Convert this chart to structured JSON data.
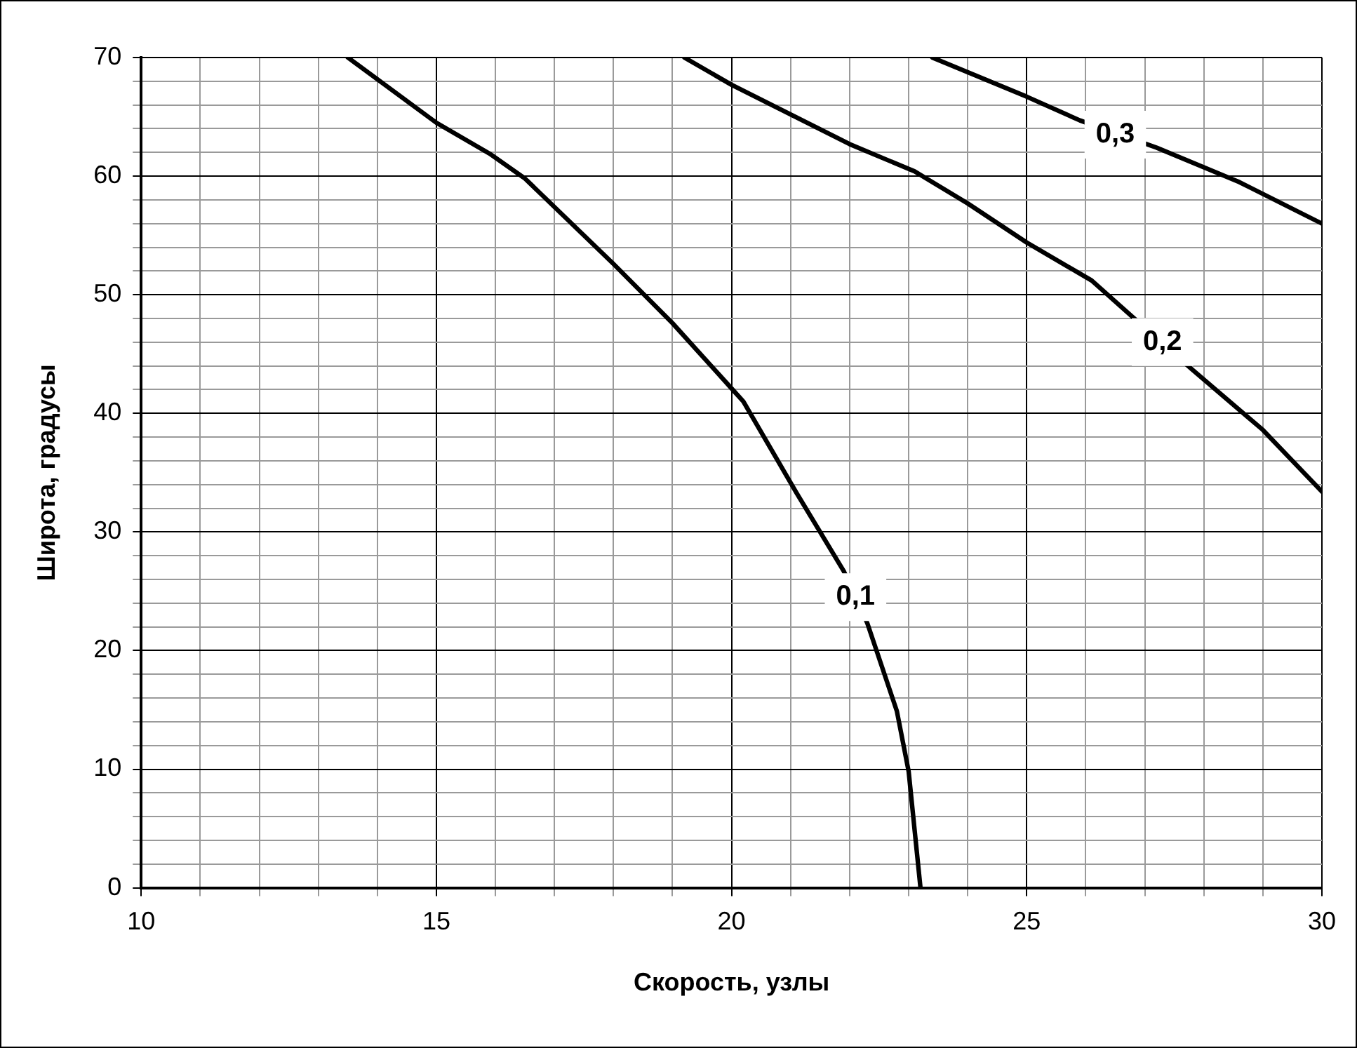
{
  "chart_data": {
    "type": "line",
    "xlabel": "Скорость, узлы",
    "ylabel": "Широта, градусы",
    "xlim": [
      10,
      30
    ],
    "ylim": [
      0,
      70
    ],
    "xticks": [
      10,
      {
        "value": 11,
        "label": null
      },
      {
        "value": 12,
        "label": null
      },
      {
        "value": 13,
        "label": null
      },
      {
        "value": 14,
        "label": null
      },
      15,
      {
        "value": 16,
        "label": null
      },
      {
        "value": 17,
        "label": null
      },
      {
        "value": 18,
        "label": null
      },
      {
        "value": 19,
        "label": null
      },
      20,
      {
        "value": 21,
        "label": null
      },
      {
        "value": 22,
        "label": null
      },
      {
        "value": 23,
        "label": null
      },
      {
        "value": 24,
        "label": null
      },
      25,
      {
        "value": 26,
        "label": null
      },
      {
        "value": 27,
        "label": null
      },
      {
        "value": 28,
        "label": null
      },
      {
        "value": 29,
        "label": null
      },
      30
    ],
    "yticks": [
      0,
      {
        "value": 2,
        "label": null
      },
      {
        "value": 4,
        "label": null
      },
      {
        "value": 6,
        "label": null
      },
      {
        "value": 8,
        "label": null
      },
      10,
      {
        "value": 12,
        "label": null
      },
      {
        "value": 14,
        "label": null
      },
      {
        "value": 16,
        "label": null
      },
      {
        "value": 18,
        "label": null
      },
      20,
      {
        "value": 22,
        "label": null
      },
      {
        "value": 24,
        "label": null
      },
      {
        "value": 26,
        "label": null
      },
      {
        "value": 28,
        "label": null
      },
      30,
      {
        "value": 32,
        "label": null
      },
      {
        "value": 34,
        "label": null
      },
      {
        "value": 36,
        "label": null
      },
      {
        "value": 38,
        "label": null
      },
      40,
      {
        "value": 42,
        "label": null
      },
      {
        "value": 44,
        "label": null
      },
      {
        "value": 46,
        "label": null
      },
      {
        "value": 48,
        "label": null
      },
      50,
      {
        "value": 52,
        "label": null
      },
      {
        "value": 54,
        "label": null
      },
      {
        "value": 56,
        "label": null
      },
      {
        "value": 58,
        "label": null
      },
      60,
      {
        "value": 62,
        "label": null
      },
      {
        "value": 64,
        "label": null
      },
      {
        "value": 66,
        "label": null
      },
      {
        "value": 68,
        "label": null
      },
      70
    ],
    "grid": true,
    "legend": false,
    "marker": "none",
    "line_style": "solid",
    "series": [
      {
        "color": "#000000",
        "x": [
          13.5,
          15.0,
          15.9,
          16.5,
          18.0,
          19.0,
          20.0,
          20.2,
          21.1,
          21.9,
          22.3,
          22.8,
          23.0,
          23.2
        ],
        "values": [
          70,
          64.5,
          61.9,
          59.8,
          52.6,
          47.6,
          42.1,
          41.0,
          33.3,
          26.7,
          22.3,
          14.9,
          9.8,
          0
        ]
      },
      {
        "color": "#000000",
        "x": [
          19.2,
          20.0,
          22.0,
          23.1,
          24.0,
          25.0,
          26.1,
          26.8,
          27.8,
          29.0,
          30.0
        ],
        "values": [
          70,
          67.7,
          62.7,
          60.4,
          57.7,
          54.4,
          51.2,
          48.1,
          43.7,
          38.6,
          33.4
        ]
      },
      {
        "color": "#000000",
        "x": [
          23.4,
          25.0,
          25.9,
          27.2,
          28.6,
          30.0
        ],
        "values": [
          70,
          66.7,
          64.7,
          62.4,
          59.5,
          56.0
        ]
      }
    ],
    "annotations": [
      {
        "text": "0,1",
        "x": 22.1,
        "y": 24.5
      },
      {
        "text": "0,2",
        "x": 27.3,
        "y": 46
      },
      {
        "text": "0,3",
        "x": 26.5,
        "y": 63.5
      }
    ]
  }
}
